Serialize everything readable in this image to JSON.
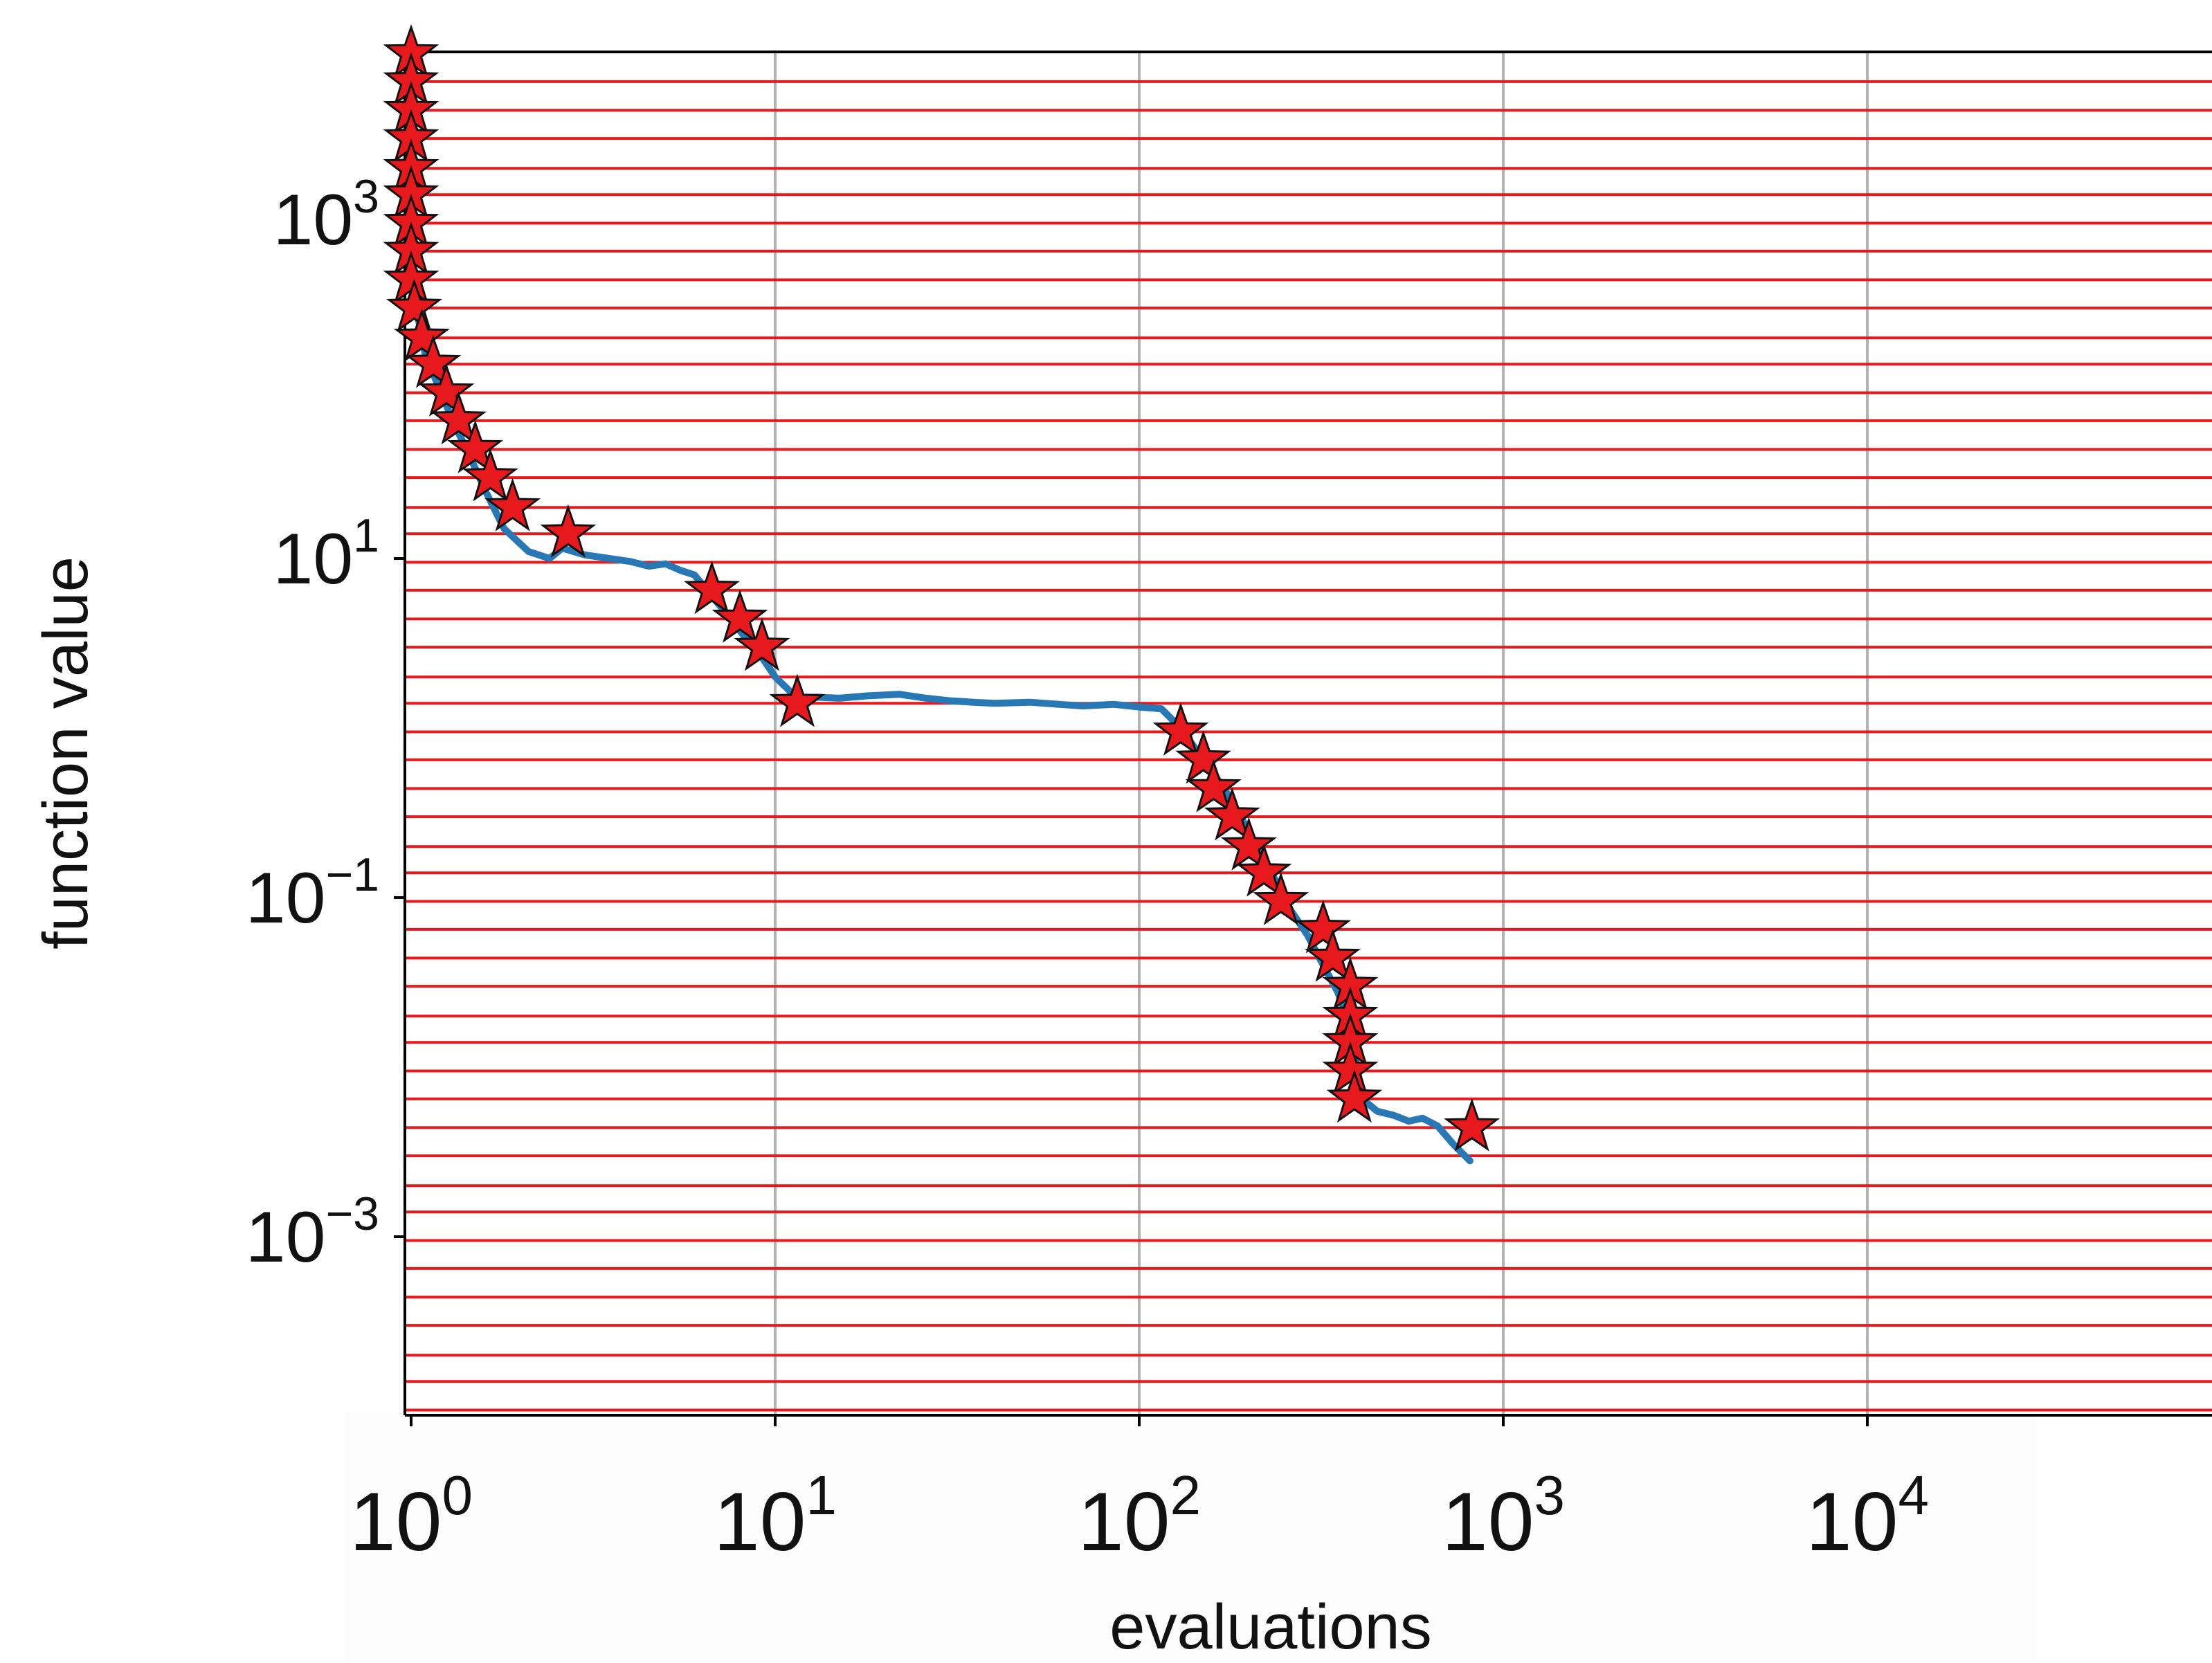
{
  "chart_data": {
    "type": "line",
    "xlabel": "evaluations",
    "ylabel": "function value",
    "x_scale": "log",
    "y_scale": "log",
    "xlim": [
      0.97,
      110000
    ],
    "ylim": [
      8e-05,
      11000
    ],
    "grid": "vertical",
    "x_ticks": [
      {
        "value": 1,
        "base": "10",
        "exp": "0"
      },
      {
        "value": 10,
        "base": "10",
        "exp": "1"
      },
      {
        "value": 100,
        "base": "10",
        "exp": "2"
      },
      {
        "value": 1000,
        "base": "10",
        "exp": "3"
      },
      {
        "value": 10000,
        "base": "10",
        "exp": "4"
      }
    ],
    "y_ticks": [
      {
        "value": 1000,
        "base": "10",
        "exp": "3"
      },
      {
        "value": 10,
        "base": "10",
        "exp": "1"
      },
      {
        "value": 0.1,
        "base": "10",
        "exp": "−1"
      },
      {
        "value": 0.001,
        "base": "10",
        "exp": "−3"
      }
    ],
    "reference_lines": {
      "color": "#e8191c",
      "y": [
        10000,
        6500,
        4400,
        3000,
        2000,
        1400,
        950,
        650,
        440,
        300,
        200,
        140,
        95,
        65,
        44,
        30,
        20,
        14,
        9.5,
        6.5,
        4.4,
        3.0,
        2.0,
        1.4,
        0.95,
        0.65,
        0.44,
        0.3,
        0.2,
        0.14,
        0.095,
        0.065,
        0.044,
        0.03,
        0.02,
        0.014,
        0.0095,
        0.0065,
        0.0044,
        0.003,
        0.002,
        0.0014,
        0.00095,
        0.00065,
        0.00044,
        0.0003,
        0.0002,
        0.00014,
        9.5e-05
      ]
    },
    "series": [
      {
        "color": "#2878b5",
        "x": [
          1.0,
          1.0,
          1.01,
          1.02,
          1.05,
          1.1,
          1.2,
          1.3,
          1.45,
          1.6,
          1.8,
          2.1,
          2.4,
          2.6,
          3.0,
          3.5,
          4.0,
          4.5,
          5.0,
          5.5,
          6.0,
          6.7,
          7.5,
          8.2,
          9.0,
          10.0,
          11.5,
          13.0,
          15.0,
          18.0,
          22.0,
          26.0,
          30.0,
          35.0,
          40.0,
          50.0,
          60.0,
          70.0,
          85.0,
          100.0,
          115.0,
          130.0,
          150.0,
          170.0,
          190.0,
          210.0,
          235.0,
          260.0,
          290.0,
          320.0,
          350.0,
          380.0,
          390.0,
          400.0,
          410.0,
          450.0,
          500.0,
          550.0,
          600.0,
          660.0,
          730.0,
          810.0
        ],
        "y": [
          10000,
          1500,
          500,
          300,
          250,
          150,
          100,
          65,
          40,
          25,
          15,
          11,
          10,
          11.5,
          10.5,
          10,
          9.6,
          9,
          9.3,
          8.5,
          8.0,
          6.0,
          4.5,
          3.5,
          2.8,
          2.0,
          1.5,
          1.52,
          1.5,
          1.55,
          1.58,
          1.5,
          1.45,
          1.42,
          1.4,
          1.42,
          1.38,
          1.35,
          1.38,
          1.33,
          1.3,
          1.0,
          0.65,
          0.45,
          0.3,
          0.2,
          0.13,
          0.085,
          0.06,
          0.04,
          0.028,
          0.018,
          0.012,
          0.009,
          0.0065,
          0.0055,
          0.0052,
          0.0048,
          0.005,
          0.0045,
          0.0035,
          0.0028
        ]
      }
    ],
    "markers": {
      "shape": "star",
      "fill": "#e8191c",
      "stroke": "#111111",
      "x": [
        1.0,
        1.0,
        1.0,
        1.0,
        1.0,
        1.0,
        1.0,
        1.0,
        1.0,
        1.02,
        1.07,
        1.15,
        1.25,
        1.35,
        1.5,
        1.65,
        1.9,
        2.7,
        6.7,
        8.0,
        9.2,
        11.5,
        130.0,
        150.0,
        160.0,
        180.0,
        200.0,
        220.0,
        245.0,
        320.0,
        340.0,
        380.0,
        380.0,
        380.0,
        380.0,
        390.0,
        820.0
      ],
      "y": [
        9500,
        6500,
        4400,
        3000,
        2000,
        1400,
        950,
        650,
        440,
        300,
        200,
        140,
        95,
        65,
        44,
        30,
        20,
        14,
        6.5,
        4.4,
        3.0,
        1.4,
        0.95,
        0.65,
        0.44,
        0.3,
        0.2,
        0.14,
        0.095,
        0.065,
        0.044,
        0.03,
        0.02,
        0.014,
        0.0095,
        0.0065,
        0.0044
      ]
    }
  }
}
